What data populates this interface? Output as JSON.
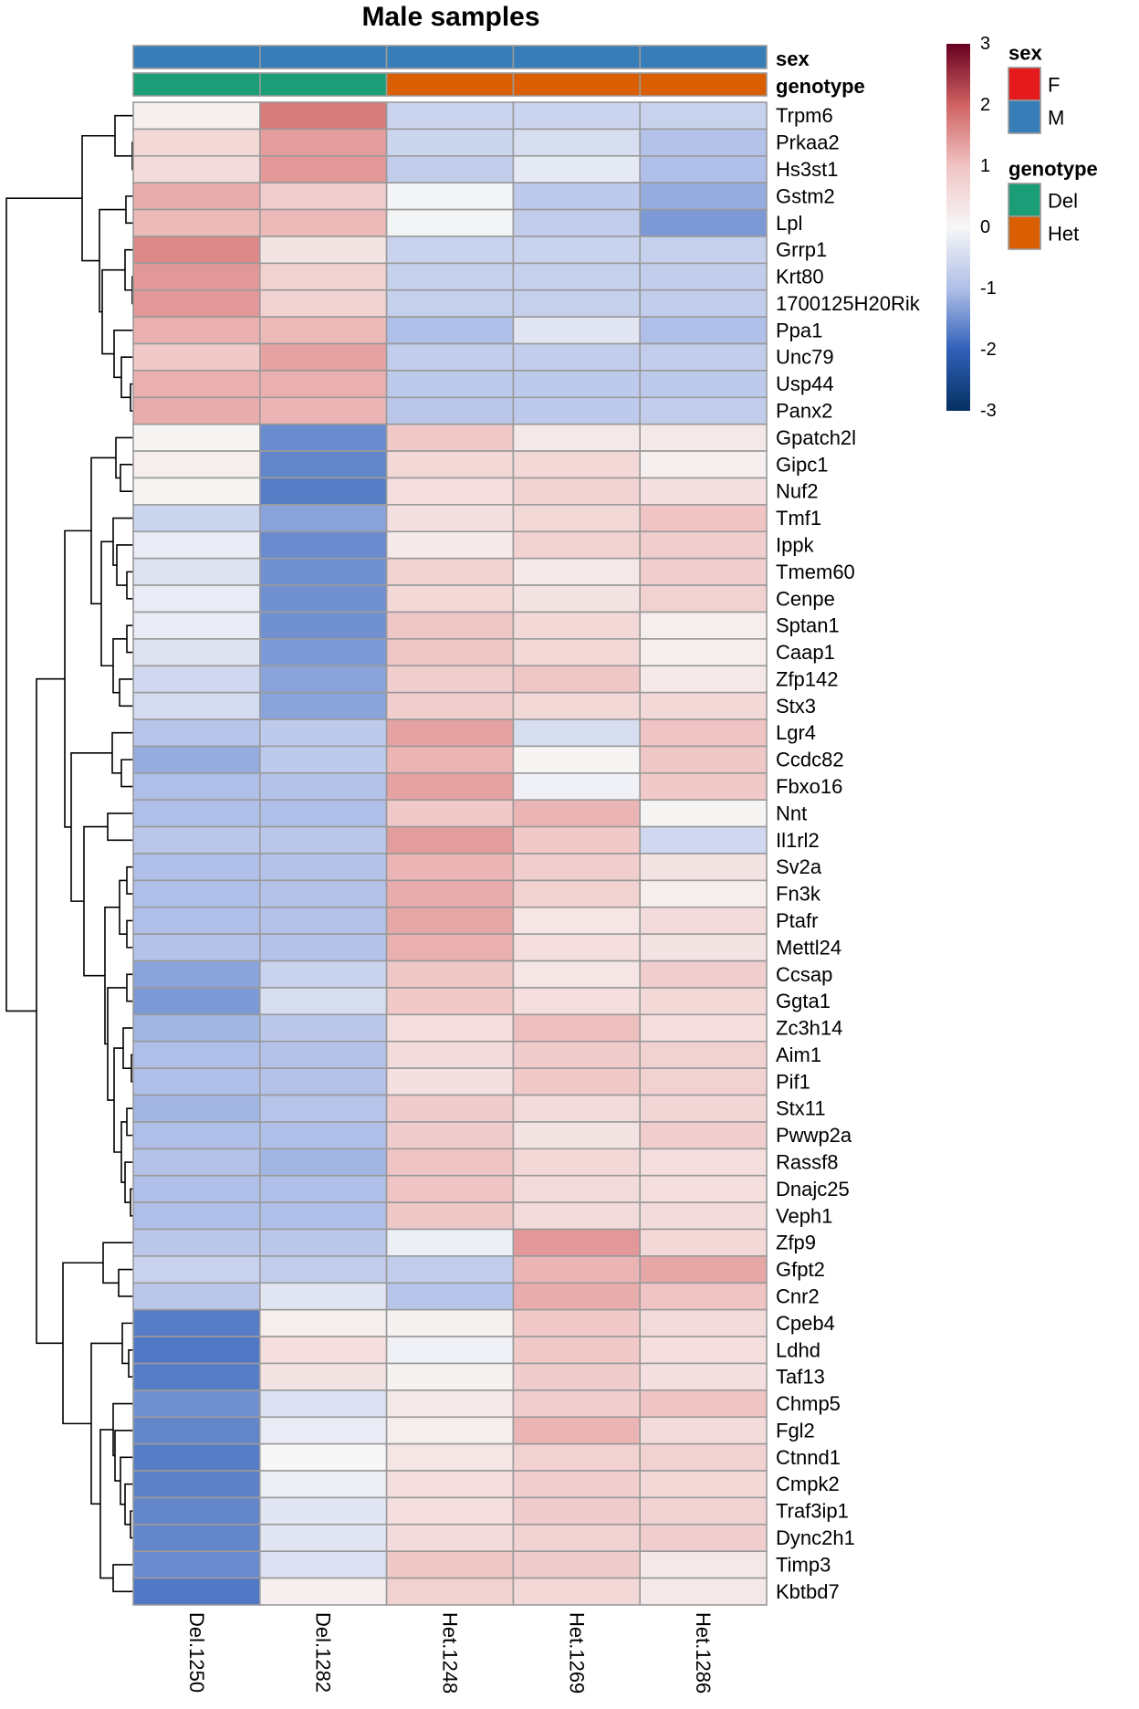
{
  "chart_data": {
    "type": "heatmap",
    "title": "Male samples",
    "columns": [
      "Del.1250",
      "Del.1282",
      "Het.1248",
      "Het.1269",
      "Het.1286"
    ],
    "rows": [
      "Trpm6",
      "Prkaa2",
      "Hs3st1",
      "Gstm2",
      "Lpl",
      "Grrp1",
      "Krt80",
      "1700125H20Rik",
      "Ppa1",
      "Unc79",
      "Usp44",
      "Panx2",
      "Gpatch2l",
      "Gipc1",
      "Nuf2",
      "Tmf1",
      "Ippk",
      "Tmem60",
      "Cenpe",
      "Sptan1",
      "Caap1",
      "Zfp142",
      "Stx3",
      "Lgr4",
      "Ccdc82",
      "Fbxo16",
      "Nnt",
      "Il1rl2",
      "Sv2a",
      "Fn3k",
      "Ptafr",
      "Mettl24",
      "Ccsap",
      "Ggta1",
      "Zc3h14",
      "Aim1",
      "Pif1",
      "Stx11",
      "Pwwp2a",
      "Rassf8",
      "Dnajc25",
      "Veph1",
      "Zfp9",
      "Gfpt2",
      "Cnr2",
      "Cpeb4",
      "Ldhd",
      "Taf13",
      "Chmp5",
      "Fgl2",
      "Ctnnd1",
      "Cmpk2",
      "Traf3ip1",
      "Dync2h1",
      "Timp3",
      "Kbtbd7"
    ],
    "values": [
      [
        0.15,
        1.75,
        -0.62,
        -0.62,
        -0.66
      ],
      [
        0.6,
        1.4,
        -0.6,
        -0.45,
        -0.95
      ],
      [
        0.55,
        1.45,
        -0.75,
        -0.25,
        -1.0
      ],
      [
        1.25,
        0.8,
        -0.05,
        -0.8,
        -1.2
      ],
      [
        1.1,
        1.1,
        -0.05,
        -0.75,
        -1.4
      ],
      [
        1.6,
        0.4,
        -0.65,
        -0.65,
        -0.7
      ],
      [
        1.45,
        0.75,
        -0.7,
        -0.7,
        -0.75
      ],
      [
        1.45,
        0.7,
        -0.7,
        -0.7,
        -0.75
      ],
      [
        1.2,
        1.1,
        -1.0,
        -0.3,
        -1.0
      ],
      [
        0.9,
        1.35,
        -0.75,
        -0.75,
        -0.75
      ],
      [
        1.2,
        1.2,
        -0.8,
        -0.8,
        -0.8
      ],
      [
        1.25,
        1.15,
        -0.85,
        -0.8,
        -0.75
      ],
      [
        0.05,
        -1.55,
        0.9,
        0.3,
        0.3
      ],
      [
        0.2,
        -1.6,
        0.6,
        0.6,
        0.15
      ],
      [
        0.05,
        -1.7,
        0.5,
        0.7,
        0.45
      ],
      [
        -0.6,
        -1.3,
        0.45,
        0.6,
        1.0
      ],
      [
        -0.2,
        -1.55,
        0.25,
        0.75,
        0.8
      ],
      [
        -0.35,
        -1.5,
        0.75,
        0.3,
        0.8
      ],
      [
        -0.2,
        -1.5,
        0.6,
        0.4,
        0.75
      ],
      [
        -0.2,
        -1.5,
        0.95,
        0.6,
        0.2
      ],
      [
        -0.35,
        -1.4,
        0.95,
        0.6,
        0.2
      ],
      [
        -0.55,
        -1.3,
        0.8,
        0.95,
        0.3
      ],
      [
        -0.5,
        -1.3,
        0.8,
        0.6,
        0.6
      ],
      [
        -0.9,
        -0.8,
        1.35,
        -0.45,
        1.0
      ],
      [
        -1.2,
        -0.8,
        1.15,
        0.05,
        0.95
      ],
      [
        -1.0,
        -0.95,
        1.35,
        -0.1,
        0.9
      ],
      [
        -1.0,
        -1.0,
        0.9,
        1.15,
        0.05
      ],
      [
        -0.85,
        -0.85,
        1.4,
        0.9,
        -0.55
      ],
      [
        -1.0,
        -0.95,
        1.15,
        0.8,
        0.4
      ],
      [
        -1.0,
        -0.95,
        1.25,
        0.75,
        0.2
      ],
      [
        -1.0,
        -0.95,
        1.3,
        0.35,
        0.55
      ],
      [
        -0.95,
        -0.95,
        1.2,
        0.5,
        0.4
      ],
      [
        -1.3,
        -0.65,
        0.95,
        0.35,
        0.8
      ],
      [
        -1.4,
        -0.45,
        0.9,
        0.5,
        0.6
      ],
      [
        -1.1,
        -0.85,
        0.5,
        1.05,
        0.5
      ],
      [
        -1.0,
        -0.95,
        0.55,
        0.85,
        0.75
      ],
      [
        -1.0,
        -0.95,
        0.45,
        0.9,
        0.75
      ],
      [
        -1.1,
        -0.9,
        0.85,
        0.55,
        0.65
      ],
      [
        -1.0,
        -1.0,
        0.85,
        0.4,
        0.8
      ],
      [
        -0.95,
        -1.1,
        1.0,
        0.6,
        0.5
      ],
      [
        -1.0,
        -1.0,
        1.0,
        0.55,
        0.5
      ],
      [
        -1.0,
        -1.0,
        0.95,
        0.55,
        0.55
      ],
      [
        -0.85,
        -0.85,
        -0.15,
        1.45,
        0.6
      ],
      [
        -0.65,
        -0.75,
        -0.75,
        1.15,
        1.3
      ],
      [
        -0.85,
        -0.3,
        -0.9,
        1.25,
        1.0
      ],
      [
        -1.7,
        0.2,
        0.1,
        0.9,
        0.55
      ],
      [
        -1.75,
        0.5,
        -0.1,
        0.9,
        0.5
      ],
      [
        -1.7,
        0.4,
        0.1,
        0.85,
        0.45
      ],
      [
        -1.5,
        -0.4,
        0.3,
        0.8,
        1.0
      ],
      [
        -1.6,
        -0.2,
        0.2,
        1.15,
        0.55
      ],
      [
        -1.7,
        0.0,
        0.35,
        0.75,
        0.75
      ],
      [
        -1.65,
        -0.15,
        0.5,
        0.8,
        0.6
      ],
      [
        -1.6,
        -0.3,
        0.5,
        0.85,
        0.7
      ],
      [
        -1.6,
        -0.3,
        0.55,
        0.7,
        0.8
      ],
      [
        -1.55,
        -0.4,
        0.95,
        0.85,
        0.3
      ],
      [
        -1.75,
        0.15,
        0.75,
        0.6,
        0.3
      ]
    ],
    "color_scale": {
      "min": -3,
      "max": 3,
      "ticks": [
        "3",
        "2",
        "1",
        "0",
        "-1",
        "-2",
        "-3"
      ],
      "stops": [
        {
          "value": -3,
          "color": "#053061"
        },
        {
          "value": -2,
          "color": "#3060B8"
        },
        {
          "value": -1,
          "color": "#B0BFE8"
        },
        {
          "value": 0,
          "color": "#F7F7F7"
        },
        {
          "value": 1,
          "color": "#F0C4C4"
        },
        {
          "value": 2,
          "color": "#D06262"
        },
        {
          "value": 3,
          "color": "#67001F"
        }
      ]
    },
    "column_annotations": [
      {
        "name": "sex",
        "values": [
          "M",
          "M",
          "M",
          "M",
          "M"
        ]
      },
      {
        "name": "genotype",
        "values": [
          "Del",
          "Del",
          "Het",
          "Het",
          "Het"
        ]
      }
    ],
    "legends": [
      {
        "title": "sex",
        "items": [
          {
            "label": "F",
            "color": "#E41A1C"
          },
          {
            "label": "M",
            "color": "#377EB8"
          }
        ]
      },
      {
        "title": "genotype",
        "items": [
          {
            "label": "Del",
            "color": "#1B9E77"
          },
          {
            "label": "Het",
            "color": "#D95F02"
          }
        ]
      }
    ],
    "row_dendrogram": {
      "tree": [
        139,
        [
          56,
          [
            20,
            0,
            [
              1,
              1,
              2
            ]
          ],
          [
            37,
            [
              8,
              3,
              4
            ],
            [
              34,
              [
                9,
                5,
                [
                  1,
                  6,
                  7
                ]
              ],
              [
                21,
                8,
                [
                  13,
                  9,
                  [
                    3,
                    10,
                    11
                  ]
                ]
              ]
            ]
          ]
        ],
        [
          106,
          [
            75,
            [
              46,
              [
                19,
                12,
                [
                  14,
                  13,
                  14
                ]
              ],
              [
                35,
                [
                  22,
                  15,
                  [
                    18,
                    16,
                    [
                      7,
                      17,
                      18
                    ]
                  ]
                ],
                [
                  22,
                  [
                    7,
                    19,
                    20
                  ],
                  [
                    15,
                    21,
                    22
                  ]
                ]
              ]
            ],
            [
              68,
              [
                23,
                23,
                [
                  13,
                  24,
                  25
                ]
              ],
              [
                54,
                [
                  28,
                  26,
                  27
                ],
                [
                  31,
                  [
                    15,
                    [
                      7,
                      28,
                      29
                    ],
                    [
                      7,
                      30,
                      31
                    ]
                  ],
                  [
                    28,
                    [
                      7,
                      32,
                      33
                    ],
                    [
                      21,
                      [
                        11,
                        34,
                        [
                          2,
                          35,
                          36
                        ]
                      ],
                      [
                        13,
                        [
                          7,
                          37,
                          38
                        ],
                        [
                          9,
                          39,
                          [
                            3,
                            40,
                            41
                          ]
                        ]
                      ]
                    ]
                  ]
                ]
              ]
            ]
          ],
          [
            77,
            [
              33,
              42,
              [
                16,
                43,
                44
              ]
            ],
            [
              46,
              [
                12,
                45,
                [
                  5,
                  46,
                  47
                ]
              ],
              [
                36,
                [
                  22,
                  48,
                  [
                    20,
                    49,
                    [
                      14,
                      50,
                      [
                        9,
                        51,
                        [
                          3,
                          52,
                          53
                        ]
                      ]
                    ]
                  ]
                ],
                [
                  22,
                  54,
                  55
                ]
              ]
            ]
          ]
        ]
      ]
    },
    "grid": false,
    "legend_placement": "right"
  }
}
